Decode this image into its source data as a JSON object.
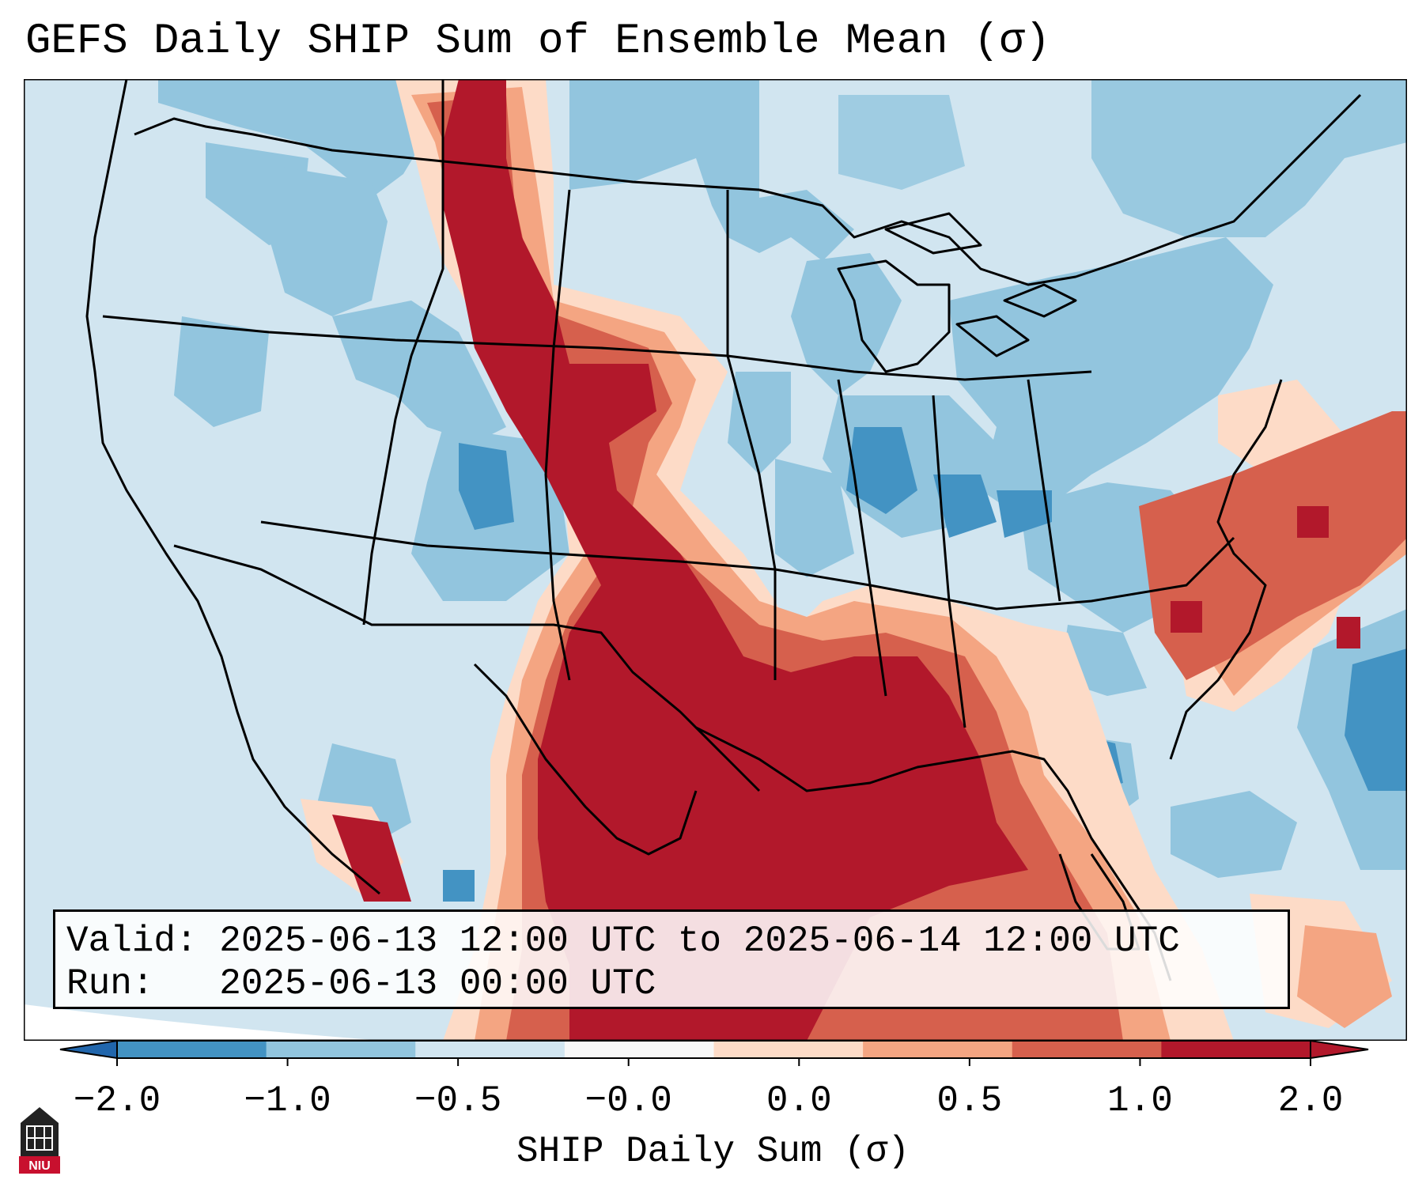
{
  "title": "GEFS Daily SHIP Sum of Ensemble Mean (σ)",
  "valid_line": "Valid: 2025-06-13 12:00 UTC to 2025-06-14 12:00 UTC",
  "run_line": "Run:   2025-06-13 00:00 UTC",
  "colorbar": {
    "label": "SHIP Daily Sum (σ)",
    "ticks": [
      "−2.0",
      "−1.0",
      "−0.5",
      "−0.0",
      "0.0",
      "0.5",
      "1.0",
      "2.0"
    ],
    "colors": [
      "#4393c3",
      "#92c5de",
      "#d1e5f0",
      "#f7f7f7",
      "#fddbc7",
      "#f4a582",
      "#d6604d",
      "#b2182b"
    ],
    "extend_low_color": "#2166ac",
    "extend_high_color": "#b2182b"
  },
  "logo": {
    "text": "NIU"
  }
}
